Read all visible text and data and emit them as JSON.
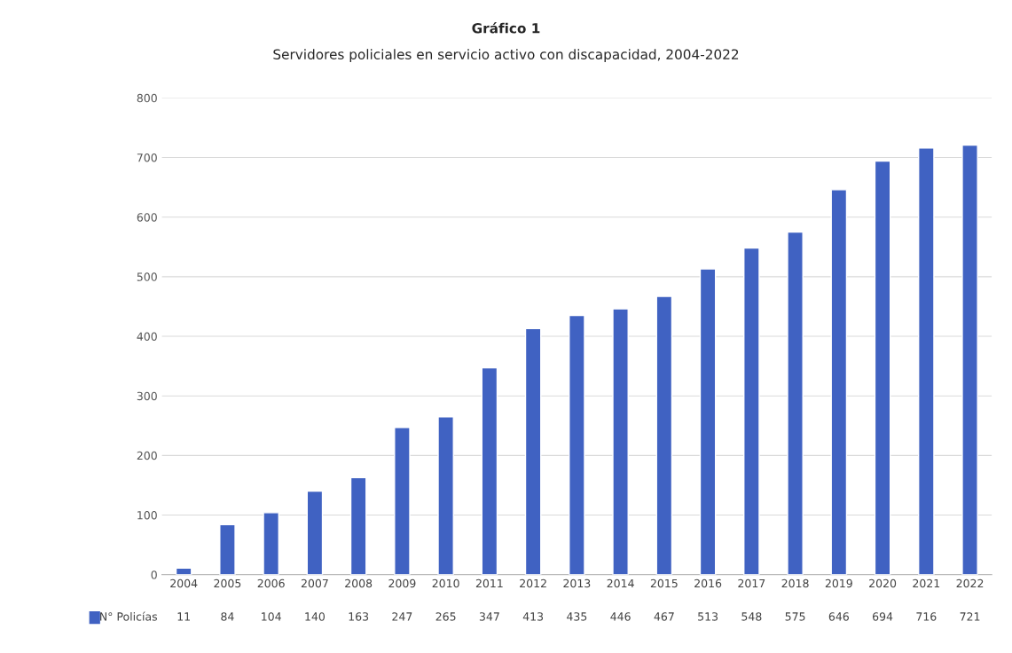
{
  "chart_data": {
    "type": "bar",
    "title": "Gráfico 1",
    "subtitle": "Servidores policiales en servicio activo con discapacidad, 2004-2022",
    "categories": [
      "2004",
      "2005",
      "2006",
      "2007",
      "2008",
      "2009",
      "2010",
      "2011",
      "2012",
      "2013",
      "2014",
      "2015",
      "2016",
      "2017",
      "2018",
      "2019",
      "2020",
      "2021",
      "2022"
    ],
    "series": [
      {
        "name": "N° Policías",
        "color": "#4062c2",
        "values": [
          11,
          84,
          104,
          140,
          163,
          247,
          265,
          347,
          413,
          435,
          446,
          467,
          513,
          548,
          575,
          646,
          694,
          716,
          721
        ]
      }
    ],
    "ylim": [
      0,
      800
    ],
    "yticks": [
      0,
      100,
      200,
      300,
      400,
      500,
      600,
      700,
      800
    ],
    "grid": "y",
    "data_labels": true
  }
}
